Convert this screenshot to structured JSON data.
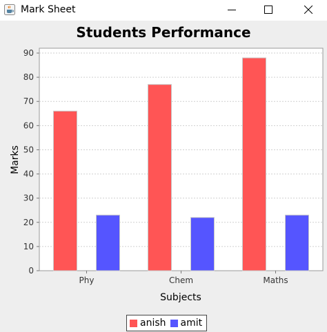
{
  "window": {
    "title": "Mark Sheet"
  },
  "chart_data": {
    "type": "bar",
    "title": "Students Performance",
    "xlabel": "Subjects",
    "ylabel": "Marks",
    "categories": [
      "Phy",
      "Chem",
      "Maths"
    ],
    "series": [
      {
        "name": "anish",
        "values": [
          66,
          77,
          88
        ],
        "color": "#ff5555"
      },
      {
        "name": "amit",
        "values": [
          23,
          22,
          23
        ],
        "color": "#5555ff"
      }
    ],
    "ylim": [
      0,
      92
    ],
    "yticks": [
      0,
      10,
      20,
      30,
      40,
      50,
      60,
      70,
      80,
      90
    ],
    "grid": true,
    "legend": "bottom"
  }
}
